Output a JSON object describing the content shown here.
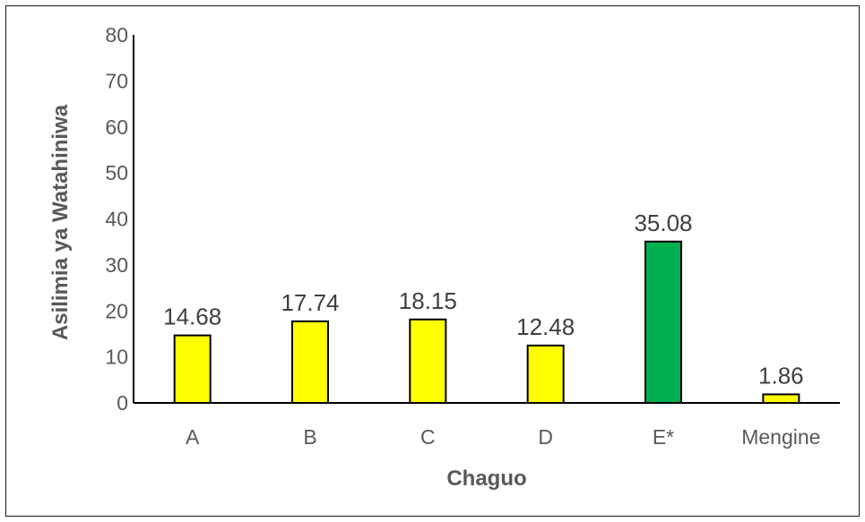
{
  "chart_data": {
    "type": "bar",
    "categories": [
      "A",
      "B",
      "C",
      "D",
      "E*",
      "Mengine"
    ],
    "values": [
      14.68,
      17.74,
      18.15,
      12.48,
      35.08,
      1.86
    ],
    "data_labels": [
      "14.68",
      "17.74",
      "18.15",
      "12.48",
      "35.08",
      "1.86"
    ],
    "bar_colors": [
      "#ffff00",
      "#ffff00",
      "#ffff00",
      "#ffff00",
      "#00b050",
      "#ffff00"
    ],
    "bar_outline_color": "#000000",
    "title": "",
    "xlabel": "Chaguo",
    "ylabel": "Asilimia ya Watahiniwa",
    "ylim": [
      0,
      80
    ],
    "yticks": [
      0,
      10,
      20,
      30,
      40,
      50,
      60,
      70,
      80
    ],
    "grid": false,
    "legend": "none"
  }
}
